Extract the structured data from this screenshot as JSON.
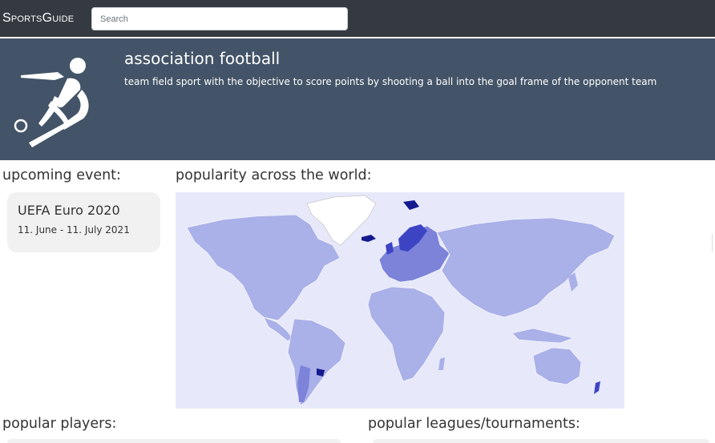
{
  "navbar": {
    "brand": "SportsGuide",
    "search_placeholder": "Search"
  },
  "hero": {
    "icon": "football-player-icon",
    "title": "association football",
    "description": "team field sport with the objective to score points by shooting a ball into the goal frame of the opponent team"
  },
  "upcoming": {
    "heading": "upcoming event:",
    "event_name": "UEFA Euro 2020",
    "event_dates": "11. June - 11. July 2021"
  },
  "popularity": {
    "heading": "popularity across the world:",
    "map": "world-choropleth-map",
    "colors": {
      "ocean": "#e7e9fb",
      "low": "#aab0e8",
      "medium": "#7c83d9",
      "high": "#3d44c4",
      "highest": "#14198f",
      "no_data": "#ffffff"
    }
  },
  "players": {
    "heading": "popular players:"
  },
  "leagues": {
    "heading": "popular leagues/tournaments:"
  },
  "colors": {
    "navbar": "#343a40",
    "hero": "#435468",
    "card": "#f1f1f1"
  }
}
